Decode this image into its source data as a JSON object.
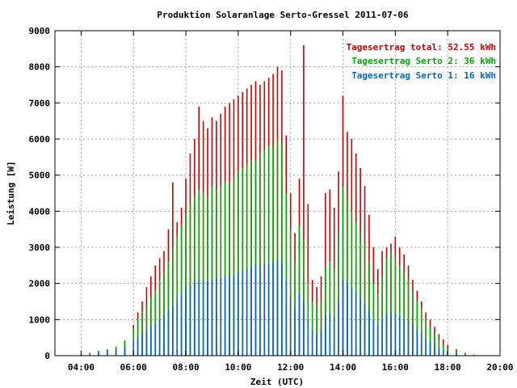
{
  "chart_data": {
    "type": "bar",
    "title": "Produktion Solaranlage Serto-Gressel 2011-07-06",
    "xlabel": "Zeit (UTC)",
    "ylabel": "Leistung [W]",
    "xlim": [
      "03:00",
      "20:00"
    ],
    "ylim": [
      0,
      9000
    ],
    "x_ticks": [
      "04:00",
      "06:00",
      "08:00",
      "10:00",
      "12:00",
      "14:00",
      "16:00",
      "18:00",
      "20:00"
    ],
    "y_ticks": [
      "0",
      "1000",
      "2000",
      "3000",
      "4000",
      "5000",
      "6000",
      "7000",
      "8000",
      "9000"
    ],
    "grid": true,
    "legend_position": "top-right",
    "stacking": "overlaid (total drawn behind Serto 2, Serto 2 behind Serto 1)",
    "series": [
      {
        "name": "Tagesertrag total: 52.55 kWh",
        "color": "#cc0000",
        "points": [
          [
            "04:00",
            30
          ],
          [
            "04:20",
            80
          ],
          [
            "04:40",
            130
          ],
          [
            "05:00",
            180
          ],
          [
            "05:20",
            250
          ],
          [
            "05:40",
            420
          ],
          [
            "06:00",
            850
          ],
          [
            "06:10",
            1200
          ],
          [
            "06:20",
            1500
          ],
          [
            "06:30",
            1900
          ],
          [
            "06:40",
            2200
          ],
          [
            "06:50",
            2500
          ],
          [
            "07:00",
            2700
          ],
          [
            "07:10",
            2900
          ],
          [
            "07:20",
            3500
          ],
          [
            "07:30",
            4800
          ],
          [
            "07:40",
            3700
          ],
          [
            "07:50",
            4100
          ],
          [
            "08:00",
            4900
          ],
          [
            "08:10",
            5600
          ],
          [
            "08:20",
            6000
          ],
          [
            "08:30",
            6900
          ],
          [
            "08:40",
            6500
          ],
          [
            "08:50",
            6300
          ],
          [
            "09:00",
            6600
          ],
          [
            "09:10",
            6500
          ],
          [
            "09:20",
            6700
          ],
          [
            "09:30",
            6900
          ],
          [
            "09:40",
            7000
          ],
          [
            "09:50",
            7100
          ],
          [
            "10:00",
            7200
          ],
          [
            "10:10",
            7300
          ],
          [
            "10:20",
            7400
          ],
          [
            "10:30",
            7500
          ],
          [
            "10:40",
            7600
          ],
          [
            "10:50",
            7500
          ],
          [
            "11:00",
            7600
          ],
          [
            "11:10",
            7700
          ],
          [
            "11:20",
            7800
          ],
          [
            "11:30",
            8000
          ],
          [
            "11:40",
            7900
          ],
          [
            "11:50",
            6100
          ],
          [
            "12:00",
            4500
          ],
          [
            "12:10",
            3400
          ],
          [
            "12:20",
            4900
          ],
          [
            "12:30",
            8600
          ],
          [
            "12:40",
            4200
          ],
          [
            "12:50",
            2100
          ],
          [
            "13:00",
            1900
          ],
          [
            "13:10",
            2200
          ],
          [
            "13:20",
            4500
          ],
          [
            "13:30",
            4600
          ],
          [
            "13:40",
            4100
          ],
          [
            "13:50",
            5100
          ],
          [
            "14:00",
            7200
          ],
          [
            "14:10",
            6200
          ],
          [
            "14:20",
            6000
          ],
          [
            "14:30",
            5600
          ],
          [
            "14:40",
            5200
          ],
          [
            "14:50",
            4700
          ],
          [
            "15:00",
            3900
          ],
          [
            "15:10",
            3000
          ],
          [
            "15:20",
            2400
          ],
          [
            "15:30",
            2900
          ],
          [
            "15:40",
            3000
          ],
          [
            "15:50",
            3100
          ],
          [
            "16:00",
            3300
          ],
          [
            "16:10",
            3000
          ],
          [
            "16:20",
            2800
          ],
          [
            "16:30",
            2500
          ],
          [
            "16:40",
            2100
          ],
          [
            "16:50",
            1800
          ],
          [
            "17:00",
            1500
          ],
          [
            "17:10",
            1200
          ],
          [
            "17:20",
            1000
          ],
          [
            "17:30",
            800
          ],
          [
            "17:40",
            600
          ],
          [
            "17:50",
            450
          ],
          [
            "18:00",
            300
          ],
          [
            "18:20",
            180
          ],
          [
            "18:40",
            80
          ],
          [
            "19:00",
            30
          ]
        ]
      },
      {
        "name": "Tagesertrag Serto 2: 36 kWh",
        "color": "#00aa00",
        "points": [
          [
            "04:00",
            30
          ],
          [
            "04:20",
            80
          ],
          [
            "04:40",
            130
          ],
          [
            "05:00",
            180
          ],
          [
            "05:20",
            250
          ],
          [
            "05:40",
            420
          ],
          [
            "06:00",
            750
          ],
          [
            "06:10",
            1000
          ],
          [
            "06:20",
            1200
          ],
          [
            "06:30",
            1400
          ],
          [
            "06:40",
            1600
          ],
          [
            "06:50",
            1800
          ],
          [
            "07:00",
            2100
          ],
          [
            "07:10",
            2300
          ],
          [
            "07:20",
            2600
          ],
          [
            "07:30",
            3000
          ],
          [
            "07:40",
            3300
          ],
          [
            "07:50",
            3600
          ],
          [
            "08:00",
            3900
          ],
          [
            "08:10",
            4200
          ],
          [
            "08:20",
            4400
          ],
          [
            "08:30",
            4600
          ],
          [
            "08:40",
            4500
          ],
          [
            "08:50",
            4400
          ],
          [
            "09:00",
            4700
          ],
          [
            "09:10",
            4600
          ],
          [
            "09:20",
            4700
          ],
          [
            "09:30",
            4800
          ],
          [
            "09:40",
            4800
          ],
          [
            "09:50",
            5000
          ],
          [
            "10:00",
            5100
          ],
          [
            "10:10",
            5200
          ],
          [
            "10:20",
            5300
          ],
          [
            "10:30",
            5400
          ],
          [
            "10:40",
            5400
          ],
          [
            "10:50",
            5600
          ],
          [
            "11:00",
            5700
          ],
          [
            "11:10",
            5800
          ],
          [
            "11:20",
            5800
          ],
          [
            "11:30",
            6000
          ],
          [
            "11:40",
            5900
          ],
          [
            "11:50",
            4500
          ],
          [
            "12:00",
            3500
          ],
          [
            "12:10",
            2600
          ],
          [
            "12:20",
            3600
          ],
          [
            "12:30",
            3200
          ],
          [
            "12:40",
            2000
          ],
          [
            "12:50",
            1500
          ],
          [
            "13:00",
            1400
          ],
          [
            "13:10",
            1500
          ],
          [
            "13:20",
            2500
          ],
          [
            "13:30",
            2600
          ],
          [
            "13:40",
            2400
          ],
          [
            "13:50",
            3400
          ],
          [
            "14:00",
            4700
          ],
          [
            "14:10",
            4300
          ],
          [
            "14:20",
            4000
          ],
          [
            "14:30",
            3700
          ],
          [
            "14:40",
            3400
          ],
          [
            "14:50",
            3100
          ],
          [
            "15:00",
            2600
          ],
          [
            "15:10",
            2000
          ],
          [
            "15:20",
            1700
          ],
          [
            "15:30",
            2200
          ],
          [
            "15:40",
            2700
          ],
          [
            "15:50",
            2900
          ],
          [
            "16:00",
            2700
          ],
          [
            "16:10",
            2500
          ],
          [
            "16:20",
            2300
          ],
          [
            "16:30",
            2100
          ],
          [
            "16:40",
            1800
          ],
          [
            "16:50",
            1500
          ],
          [
            "17:00",
            1300
          ],
          [
            "17:10",
            1000
          ],
          [
            "17:20",
            800
          ],
          [
            "17:30",
            600
          ],
          [
            "17:40",
            450
          ],
          [
            "17:50",
            300
          ],
          [
            "18:00",
            200
          ],
          [
            "18:20",
            120
          ],
          [
            "18:40",
            60
          ],
          [
            "19:00",
            20
          ]
        ]
      },
      {
        "name": "Tagesertrag Serto 1: 16 kWh",
        "color": "#0066cc",
        "points": [
          [
            "04:00",
            20
          ],
          [
            "04:20",
            50
          ],
          [
            "04:40",
            80
          ],
          [
            "05:00",
            110
          ],
          [
            "05:20",
            160
          ],
          [
            "05:40",
            250
          ],
          [
            "06:00",
            400
          ],
          [
            "06:10",
            500
          ],
          [
            "06:20",
            600
          ],
          [
            "06:30",
            700
          ],
          [
            "06:40",
            800
          ],
          [
            "06:50",
            900
          ],
          [
            "07:00",
            1000
          ],
          [
            "07:10",
            1100
          ],
          [
            "07:20",
            1250
          ],
          [
            "07:30",
            1400
          ],
          [
            "07:40",
            1550
          ],
          [
            "07:50",
            1700
          ],
          [
            "08:00",
            1850
          ],
          [
            "08:10",
            1950
          ],
          [
            "08:20",
            2050
          ],
          [
            "08:30",
            2100
          ],
          [
            "08:40",
            2100
          ],
          [
            "08:50",
            2050
          ],
          [
            "09:00",
            2100
          ],
          [
            "09:10",
            2150
          ],
          [
            "09:20",
            2150
          ],
          [
            "09:30",
            2200
          ],
          [
            "09:40",
            2200
          ],
          [
            "09:50",
            2250
          ],
          [
            "10:00",
            2300
          ],
          [
            "10:10",
            2350
          ],
          [
            "10:20",
            2400
          ],
          [
            "10:30",
            2450
          ],
          [
            "10:40",
            2500
          ],
          [
            "10:50",
            2500
          ],
          [
            "11:00",
            2550
          ],
          [
            "11:10",
            2550
          ],
          [
            "11:20",
            2600
          ],
          [
            "11:30",
            2650
          ],
          [
            "11:40",
            2600
          ],
          [
            "11:50",
            2100
          ],
          [
            "12:00",
            1600
          ],
          [
            "12:10",
            1300
          ],
          [
            "12:20",
            1700
          ],
          [
            "12:30",
            1500
          ],
          [
            "12:40",
            1000
          ],
          [
            "12:50",
            700
          ],
          [
            "13:00",
            600
          ],
          [
            "13:10",
            700
          ],
          [
            "13:20",
            1100
          ],
          [
            "13:30",
            1200
          ],
          [
            "13:40",
            1100
          ],
          [
            "13:50",
            1500
          ],
          [
            "14:00",
            2100
          ],
          [
            "14:10",
            2000
          ],
          [
            "14:20",
            1900
          ],
          [
            "14:30",
            1750
          ],
          [
            "14:40",
            1600
          ],
          [
            "14:50",
            1450
          ],
          [
            "15:00",
            1250
          ],
          [
            "15:10",
            1000
          ],
          [
            "15:20",
            850
          ],
          [
            "15:30",
            1000
          ],
          [
            "15:40",
            1150
          ],
          [
            "15:50",
            1200
          ],
          [
            "16:00",
            1150
          ],
          [
            "16:10",
            1100
          ],
          [
            "16:20",
            1000
          ],
          [
            "16:30",
            950
          ],
          [
            "16:40",
            850
          ],
          [
            "16:50",
            700
          ],
          [
            "17:00",
            600
          ],
          [
            "17:10",
            480
          ],
          [
            "17:20",
            380
          ],
          [
            "17:30",
            300
          ],
          [
            "17:40",
            220
          ],
          [
            "17:50",
            150
          ],
          [
            "18:00",
            100
          ],
          [
            "18:20",
            60
          ],
          [
            "18:40",
            30
          ],
          [
            "19:00",
            10
          ]
        ]
      }
    ]
  }
}
